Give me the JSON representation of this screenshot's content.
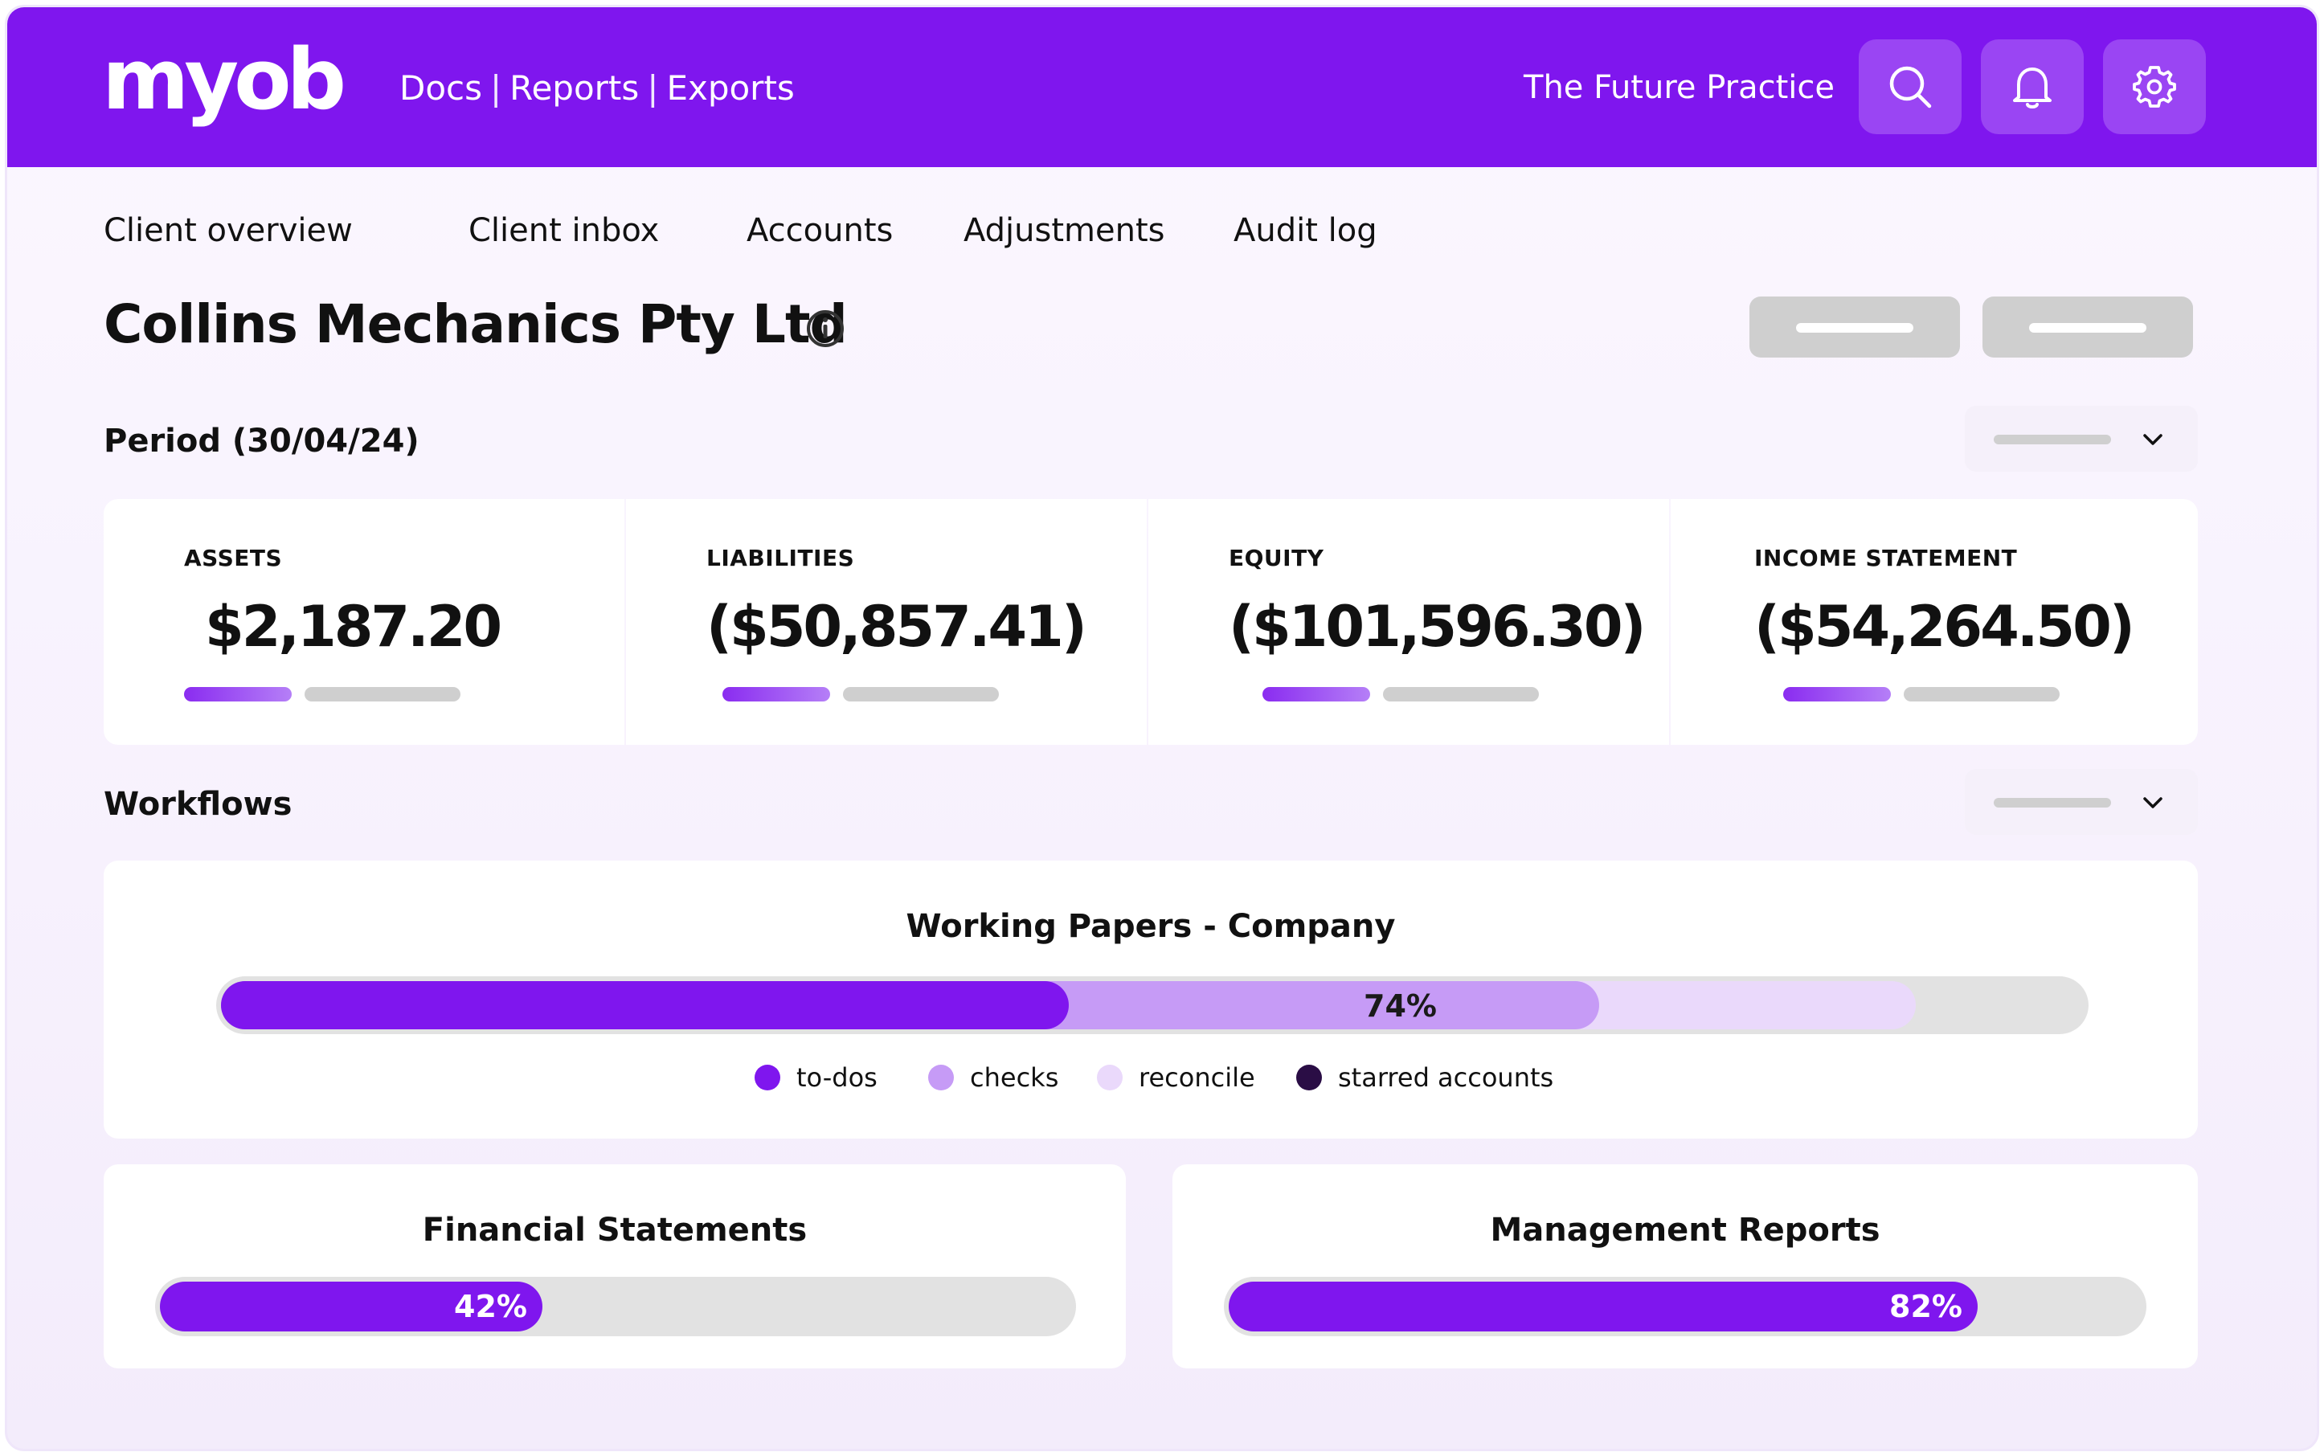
{
  "header": {
    "logo": "myob",
    "links": [
      "Docs",
      "Reports",
      "Exports"
    ],
    "practice_name": "The Future Practice",
    "icons": [
      "search-icon",
      "bell-icon",
      "gear-icon"
    ],
    "brand_color": "#7f16ee"
  },
  "tabs": [
    "Client overview",
    "Client inbox",
    "Accounts",
    "Adjustments",
    "Audit log"
  ],
  "client": {
    "name": "Collins Mechanics Pty Ltd"
  },
  "period": {
    "label": "Period (30/04/24)"
  },
  "metrics": [
    {
      "label": "ASSETS",
      "value": "$2,187.20"
    },
    {
      "label": "LIABILITIES",
      "value": "($50,857.41)"
    },
    {
      "label": "EQUITY",
      "value": "($101,596.30)"
    },
    {
      "label": "INCOME STATEMENT",
      "value": "($54,264.50)"
    }
  ],
  "workflows": {
    "label": "Workflows",
    "working_papers": {
      "title": "Working Papers - Company",
      "percent_label": "74%",
      "segments": [
        {
          "name": "to-dos",
          "fraction": 0.455,
          "color": "#7f16ee"
        },
        {
          "name": "checks",
          "fraction": 0.74,
          "color": "#c69bf6"
        },
        {
          "name": "reconcile",
          "fraction": 0.91,
          "color": "#ead9fb"
        }
      ],
      "legend": [
        {
          "name": "to-dos",
          "color": "#7f16ee"
        },
        {
          "name": "checks",
          "color": "#c69bf6"
        },
        {
          "name": "reconcile",
          "color": "#ead9fb"
        },
        {
          "name": "starred accounts",
          "color": "#2a0d45"
        }
      ]
    },
    "financial_statements": {
      "title": "Financial Statements",
      "percent_label": "42%",
      "fraction": 0.42
    },
    "management_reports": {
      "title": "Management Reports",
      "percent_label": "82%",
      "fraction": 0.82
    }
  }
}
